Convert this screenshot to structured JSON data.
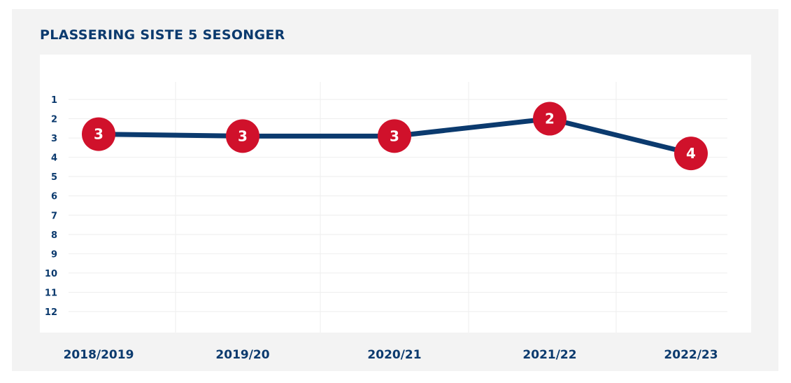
{
  "title": "PLASSERING SISTE 5 SESONGER",
  "colors": {
    "line": "#0b3a6e",
    "marker": "#d0112b",
    "text": "#0b3a6e",
    "background": "#f3f3f3",
    "plot_background": "#ffffff",
    "grid": "#eeeeee"
  },
  "chart_data": {
    "type": "line",
    "categories": [
      "2018/2019",
      "2019/20",
      "2020/21",
      "2021/22",
      "2022/23"
    ],
    "values": [
      2.8,
      2.9,
      2.9,
      2.0,
      3.8
    ],
    "value_labels": [
      "3",
      "3",
      "3",
      "2",
      "4"
    ],
    "y_ticks": [
      1,
      2,
      3,
      4,
      5,
      6,
      7,
      8,
      9,
      10,
      11,
      12
    ],
    "ylim": [
      1,
      12
    ],
    "y_inverted": true,
    "grid": true,
    "legend": false,
    "xlabel": "",
    "ylabel": ""
  }
}
